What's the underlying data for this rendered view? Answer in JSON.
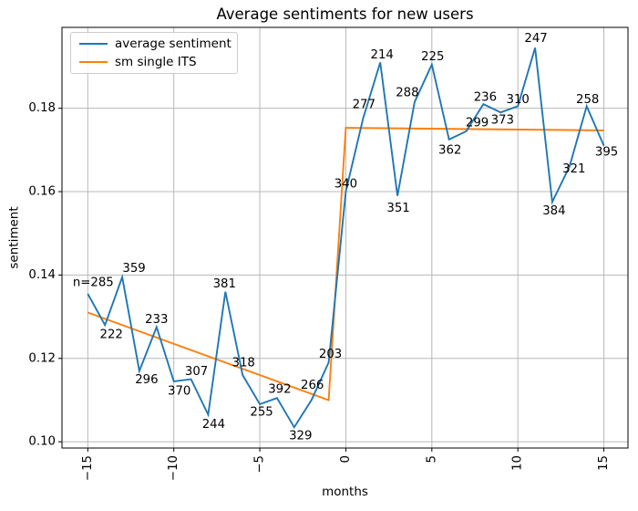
{
  "title": "Average sentiments for new users",
  "legend": {
    "items": [
      {
        "label": "average sentiment",
        "color": "#1f77b4"
      },
      {
        "label": "sm single ITS",
        "color": "#ff7f0e"
      }
    ],
    "position": "upper left"
  },
  "colors": {
    "average_sentiment_line": "#1f77b4",
    "its_line": "#ff7f0e",
    "grid": "#b8b8b8",
    "spine": "#000000"
  },
  "chart_data": {
    "type": "line",
    "title": "Average sentiments for new users",
    "xlabel": "months",
    "ylabel": "sentiment",
    "xlim": [
      -16.5,
      16.4
    ],
    "ylim": [
      0.0985,
      0.1994
    ],
    "grid": true,
    "legend_position": "upper left",
    "xticks": [
      -15,
      -10,
      -5,
      0,
      5,
      10,
      15
    ],
    "xtick_labels": [
      "−15",
      "−10",
      "−5",
      "0",
      "5",
      "10",
      "15"
    ],
    "yticks": [
      0.1,
      0.12,
      0.14,
      0.16,
      0.18
    ],
    "ytick_labels": [
      "0.10",
      "0.12",
      "0.14",
      "0.16",
      "0.18"
    ],
    "series": [
      {
        "name": "average sentiment",
        "color": "#1f77b4",
        "x": [
          -15,
          -14,
          -13,
          -12,
          -11,
          -10,
          -9,
          -8,
          -7,
          -6,
          -5,
          -4,
          -3,
          -2,
          -1,
          0,
          1,
          2,
          3,
          4,
          5,
          6,
          7,
          8,
          9,
          10,
          11,
          12,
          13,
          14,
          15
        ],
        "y": [
          0.1355,
          0.128,
          0.1395,
          0.117,
          0.1275,
          0.1145,
          0.115,
          0.1065,
          0.136,
          0.116,
          0.109,
          0.1105,
          0.1035,
          0.11,
          0.119,
          0.16,
          0.1775,
          0.191,
          0.159,
          0.1815,
          0.1905,
          0.1725,
          0.1745,
          0.181,
          0.179,
          0.1805,
          0.1945,
          0.1575,
          0.166,
          0.1805,
          0.171
        ],
        "point_labels": [
          "n=285",
          "222",
          "359",
          "296",
          "233",
          "370",
          "307",
          "244",
          "381",
          "318",
          "255",
          "392",
          "329",
          "266",
          "203",
          "340",
          "277",
          "214",
          "351",
          "288",
          "225",
          "362",
          "299",
          "236",
          "373",
          "310",
          "247",
          "384",
          "321",
          "258",
          "395"
        ],
        "label_offsets": [
          [
            6,
            -12
          ],
          [
            7,
            11
          ],
          [
            13,
            -9
          ],
          [
            8,
            10
          ],
          [
            0,
            -8
          ],
          [
            6,
            11
          ],
          [
            6,
            -8
          ],
          [
            6,
            11
          ],
          [
            -1,
            -8
          ],
          [
            1,
            -13
          ],
          [
            2,
            9
          ],
          [
            3,
            -9
          ],
          [
            7,
            10
          ],
          [
            1,
            -16
          ],
          [
            2,
            -9
          ],
          [
            0,
            -8
          ],
          [
            1,
            -15
          ],
          [
            2,
            -8
          ],
          [
            1,
            14
          ],
          [
            -8,
            -10
          ],
          [
            1,
            -8
          ],
          [
            1,
            12
          ],
          [
            12,
            -9
          ],
          [
            2,
            -7
          ],
          [
            2,
            9
          ],
          [
            0,
            -7
          ],
          [
            1,
            -10
          ],
          [
            2,
            10
          ],
          [
            5,
            3
          ],
          [
            1,
            -7
          ],
          [
            3,
            7
          ]
        ]
      },
      {
        "name": "sm single ITS",
        "color": "#ff7f0e",
        "x": [
          -15,
          -1,
          0,
          15
        ],
        "y": [
          0.131,
          0.11,
          0.1753,
          0.1747
        ],
        "point_labels": [],
        "label_offsets": []
      }
    ]
  }
}
